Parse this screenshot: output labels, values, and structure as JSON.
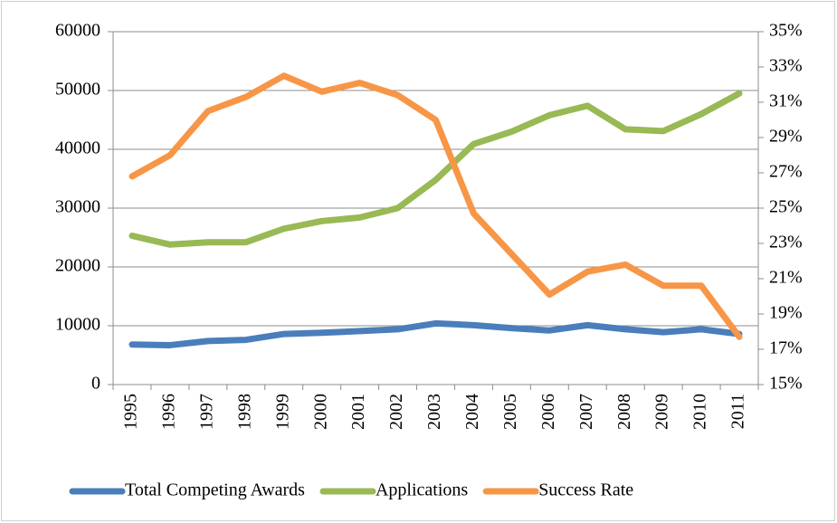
{
  "chart_data": {
    "type": "line",
    "categories": [
      "1995",
      "1996",
      "1997",
      "1998",
      "1999",
      "2000",
      "2001",
      "2002",
      "2003",
      "2004",
      "2005",
      "2006",
      "2007",
      "2008",
      "2009",
      "2010",
      "2011"
    ],
    "series": [
      {
        "name": "Total Competing Awards",
        "color": "#4a7ebb",
        "values": [
          6800,
          6700,
          7400,
          7600,
          8600,
          8800,
          9100,
          9400,
          10400,
          10100,
          9600,
          9200,
          10100,
          9400,
          8900,
          9400,
          8600
        ]
      },
      {
        "name": "Applications",
        "color": "#98b954",
        "values": [
          25300,
          23800,
          24200,
          24200,
          26500,
          27800,
          28400,
          30000,
          34800,
          40900,
          43000,
          45800,
          47400,
          43400,
          43100,
          46000,
          49500
        ]
      },
      {
        "name": "Success Rate",
        "color": "#f79646",
        "axis": "y2",
        "values": [
          26.8,
          28.0,
          30.5,
          31.3,
          32.5,
          31.6,
          32.1,
          31.4,
          30.0,
          24.7,
          22.4,
          20.1,
          21.4,
          21.8,
          20.6,
          20.6,
          17.7
        ]
      }
    ],
    "ylim": [
      0,
      60000
    ],
    "yticks": [
      0,
      10000,
      20000,
      30000,
      40000,
      50000,
      60000
    ],
    "y2lim": [
      15,
      35
    ],
    "y2ticks": [
      {
        "value": 15,
        "label": "15%"
      },
      {
        "value": 17,
        "label": "17%"
      },
      {
        "value": 19,
        "label": "19%"
      },
      {
        "value": 21,
        "label": "21%"
      },
      {
        "value": 23,
        "label": "23%"
      },
      {
        "value": 25,
        "label": "25%"
      },
      {
        "value": 27,
        "label": "27%"
      },
      {
        "value": 29,
        "label": "29%"
      },
      {
        "value": 31,
        "label": "31%"
      },
      {
        "value": 33,
        "label": "33%"
      },
      {
        "value": 35,
        "label": "35%"
      }
    ],
    "grid": true,
    "legend": "bottom"
  }
}
